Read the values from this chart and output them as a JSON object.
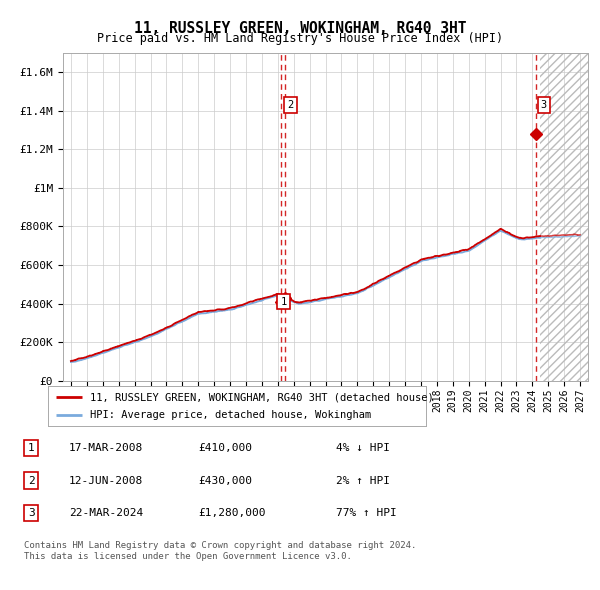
{
  "title": "11, RUSSLEY GREEN, WOKINGHAM, RG40 3HT",
  "subtitle": "Price paid vs. HM Land Registry's House Price Index (HPI)",
  "ylim": [
    0,
    1700000
  ],
  "xlim_start": 1994.5,
  "xlim_end": 2027.5,
  "yticks": [
    0,
    200000,
    400000,
    600000,
    800000,
    1000000,
    1200000,
    1400000,
    1600000
  ],
  "ytick_labels": [
    "£0",
    "£200K",
    "£400K",
    "£600K",
    "£800K",
    "£1M",
    "£1.2M",
    "£1.4M",
    "£1.6M"
  ],
  "xtick_years": [
    1995,
    1996,
    1997,
    1998,
    1999,
    2000,
    2001,
    2002,
    2003,
    2004,
    2005,
    2006,
    2007,
    2008,
    2009,
    2010,
    2011,
    2012,
    2013,
    2014,
    2015,
    2016,
    2017,
    2018,
    2019,
    2020,
    2021,
    2022,
    2023,
    2024,
    2025,
    2026,
    2027
  ],
  "hpi_color": "#7aaadd",
  "price_color": "#cc0000",
  "sale1_date": 2008.21,
  "sale1_price": 410000,
  "sale2_date": 2008.45,
  "sale2_price": 430000,
  "sale3_date": 2024.22,
  "sale3_price": 1280000,
  "future_start": 2024.5,
  "legend_line1": "11, RUSSLEY GREEN, WOKINGHAM, RG40 3HT (detached house)",
  "legend_line2": "HPI: Average price, detached house, Wokingham",
  "table_rows": [
    [
      "1",
      "17-MAR-2008",
      "£410,000",
      "4% ↓ HPI"
    ],
    [
      "2",
      "12-JUN-2008",
      "£430,000",
      "2% ↑ HPI"
    ],
    [
      "3",
      "22-MAR-2024",
      "£1,280,000",
      "77% ↑ HPI"
    ]
  ],
  "footnote1": "Contains HM Land Registry data © Crown copyright and database right 2024.",
  "footnote2": "This data is licensed under the Open Government Licence v3.0.",
  "background_color": "#ffffff",
  "grid_color": "#cccccc"
}
